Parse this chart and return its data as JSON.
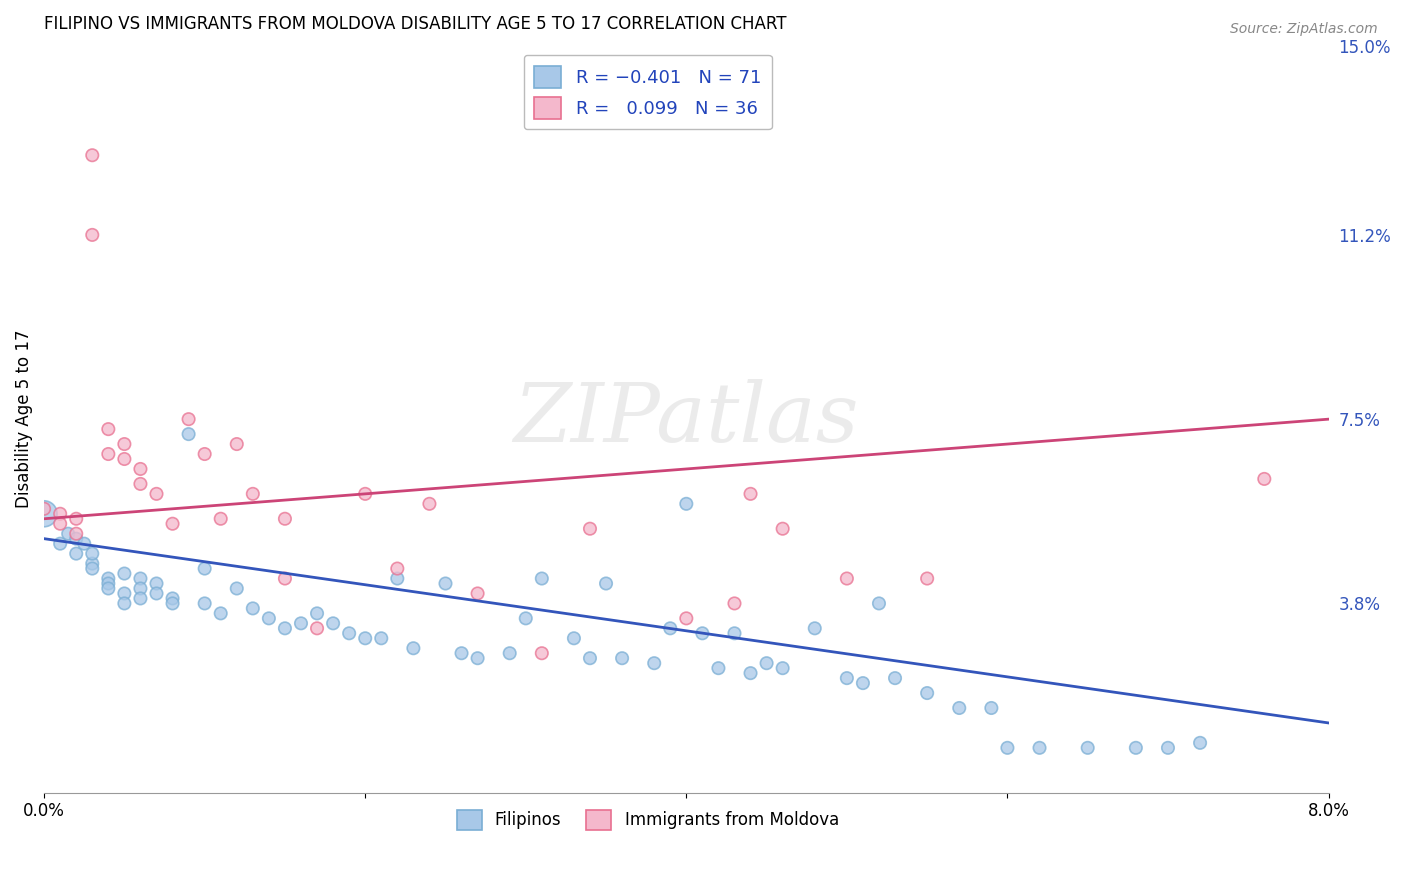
{
  "title": "FILIPINO VS IMMIGRANTS FROM MOLDOVA DISABILITY AGE 5 TO 17 CORRELATION CHART",
  "source": "Source: ZipAtlas.com",
  "ylabel": "Disability Age 5 to 17",
  "x_min": 0.0,
  "x_max": 0.08,
  "y_min": 0.0,
  "y_max": 0.15,
  "y_ticks_right": [
    0.038,
    0.075,
    0.112,
    0.15
  ],
  "y_tick_labels_right": [
    "3.8%",
    "7.5%",
    "11.2%",
    "15.0%"
  ],
  "watermark": "ZIPatlas",
  "blue_color": "#a8c8e8",
  "blue_edge_color": "#7aaed4",
  "pink_color": "#f4b8cc",
  "pink_edge_color": "#e87090",
  "blue_line_color": "#3355bb",
  "pink_line_color": "#cc4477",
  "grid_color": "#cccccc",
  "legend_R1": "R = ",
  "legend_R1val": "-0.401",
  "legend_N1": "  N = ",
  "legend_N1val": "71",
  "legend_R2": "R =  ",
  "legend_R2val": "0.099",
  "legend_N2": "  N = ",
  "legend_N2val": "36",
  "filipinos_x": [
    0.0,
    0.001,
    0.0015,
    0.002,
    0.002,
    0.0025,
    0.003,
    0.003,
    0.003,
    0.004,
    0.004,
    0.004,
    0.005,
    0.005,
    0.005,
    0.006,
    0.006,
    0.006,
    0.007,
    0.007,
    0.008,
    0.008,
    0.009,
    0.01,
    0.01,
    0.011,
    0.012,
    0.013,
    0.014,
    0.015,
    0.016,
    0.017,
    0.018,
    0.019,
    0.02,
    0.021,
    0.022,
    0.023,
    0.025,
    0.026,
    0.027,
    0.029,
    0.03,
    0.031,
    0.033,
    0.034,
    0.035,
    0.036,
    0.038,
    0.039,
    0.04,
    0.041,
    0.042,
    0.043,
    0.044,
    0.045,
    0.046,
    0.048,
    0.05,
    0.051,
    0.052,
    0.053,
    0.055,
    0.057,
    0.059,
    0.06,
    0.062,
    0.065,
    0.068,
    0.07,
    0.072
  ],
  "filipinos_y": [
    0.056,
    0.05,
    0.052,
    0.048,
    0.051,
    0.05,
    0.046,
    0.045,
    0.048,
    0.043,
    0.042,
    0.041,
    0.044,
    0.04,
    0.038,
    0.043,
    0.041,
    0.039,
    0.042,
    0.04,
    0.039,
    0.038,
    0.072,
    0.038,
    0.045,
    0.036,
    0.041,
    0.037,
    0.035,
    0.033,
    0.034,
    0.036,
    0.034,
    0.032,
    0.031,
    0.031,
    0.043,
    0.029,
    0.042,
    0.028,
    0.027,
    0.028,
    0.035,
    0.043,
    0.031,
    0.027,
    0.042,
    0.027,
    0.026,
    0.033,
    0.058,
    0.032,
    0.025,
    0.032,
    0.024,
    0.026,
    0.025,
    0.033,
    0.023,
    0.022,
    0.038,
    0.023,
    0.02,
    0.017,
    0.017,
    0.009,
    0.009,
    0.009,
    0.009,
    0.009,
    0.01
  ],
  "filipinos_sizes": [
    350,
    80,
    80,
    80,
    80,
    80,
    80,
    80,
    80,
    80,
    80,
    80,
    80,
    80,
    80,
    80,
    80,
    80,
    80,
    80,
    80,
    80,
    80,
    80,
    80,
    80,
    80,
    80,
    80,
    80,
    80,
    80,
    80,
    80,
    80,
    80,
    80,
    80,
    80,
    80,
    80,
    80,
    80,
    80,
    80,
    80,
    80,
    80,
    80,
    80,
    80,
    80,
    80,
    80,
    80,
    80,
    80,
    80,
    80,
    80,
    80,
    80,
    80,
    80,
    80,
    80,
    80,
    80,
    80,
    80,
    80
  ],
  "moldova_x": [
    0.0,
    0.001,
    0.001,
    0.002,
    0.002,
    0.003,
    0.003,
    0.004,
    0.004,
    0.005,
    0.005,
    0.006,
    0.006,
    0.007,
    0.008,
    0.009,
    0.01,
    0.011,
    0.012,
    0.013,
    0.015,
    0.015,
    0.017,
    0.02,
    0.022,
    0.024,
    0.027,
    0.031,
    0.034,
    0.04,
    0.043,
    0.044,
    0.046,
    0.05,
    0.055,
    0.076
  ],
  "moldova_y": [
    0.057,
    0.056,
    0.054,
    0.055,
    0.052,
    0.128,
    0.112,
    0.073,
    0.068,
    0.07,
    0.067,
    0.065,
    0.062,
    0.06,
    0.054,
    0.075,
    0.068,
    0.055,
    0.07,
    0.06,
    0.055,
    0.043,
    0.033,
    0.06,
    0.045,
    0.058,
    0.04,
    0.028,
    0.053,
    0.035,
    0.038,
    0.06,
    0.053,
    0.043,
    0.043,
    0.063
  ],
  "moldova_sizes": [
    80,
    80,
    80,
    80,
    80,
    80,
    80,
    80,
    80,
    80,
    80,
    80,
    80,
    80,
    80,
    80,
    80,
    80,
    80,
    80,
    80,
    80,
    80,
    80,
    80,
    80,
    80,
    80,
    80,
    80,
    80,
    80,
    80,
    80,
    80,
    80
  ],
  "blue_trend_x0": 0.0,
  "blue_trend_x1": 0.08,
  "blue_trend_y0": 0.051,
  "blue_trend_y1": 0.014,
  "pink_trend_x0": 0.0,
  "pink_trend_x1": 0.08,
  "pink_trend_y0": 0.055,
  "pink_trend_y1": 0.075
}
